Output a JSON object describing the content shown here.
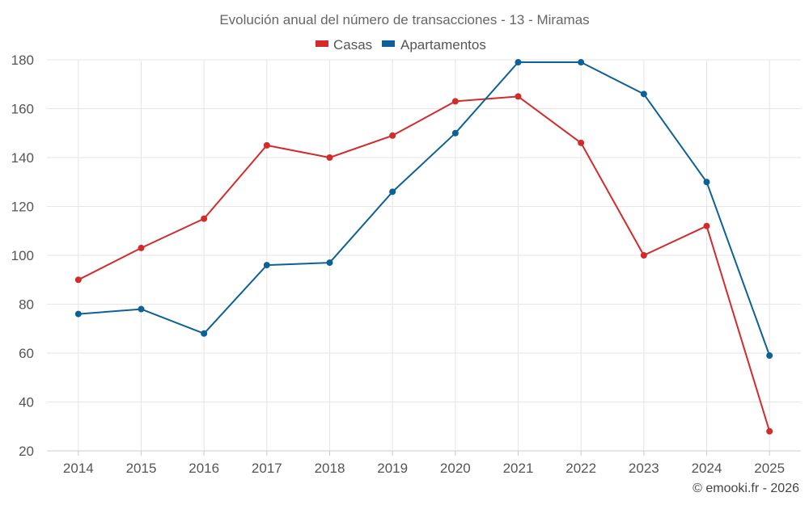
{
  "chart_data": {
    "type": "line",
    "title": "Evolución anual del número de transacciones - 13 - Miramas",
    "categories": [
      "2014",
      "2015",
      "2016",
      "2017",
      "2018",
      "2019",
      "2020",
      "2021",
      "2022",
      "2023",
      "2024",
      "2025"
    ],
    "series": [
      {
        "name": "Casas",
        "color": "#d32b2b",
        "values": [
          90,
          103,
          115,
          145,
          140,
          149,
          163,
          165,
          146,
          100,
          112,
          28
        ]
      },
      {
        "name": "Apartamentos",
        "color": "#0e6196",
        "values": [
          76,
          78,
          68,
          96,
          97,
          126,
          150,
          179,
          179,
          166,
          130,
          59
        ]
      }
    ],
    "ylim": [
      20,
      180
    ],
    "yticks": [
      20,
      40,
      60,
      80,
      100,
      120,
      140,
      160,
      180
    ],
    "xlabel": "",
    "ylabel": "",
    "legend": "top-center",
    "grid": true
  },
  "credit": "© emooki.fr - 2026"
}
